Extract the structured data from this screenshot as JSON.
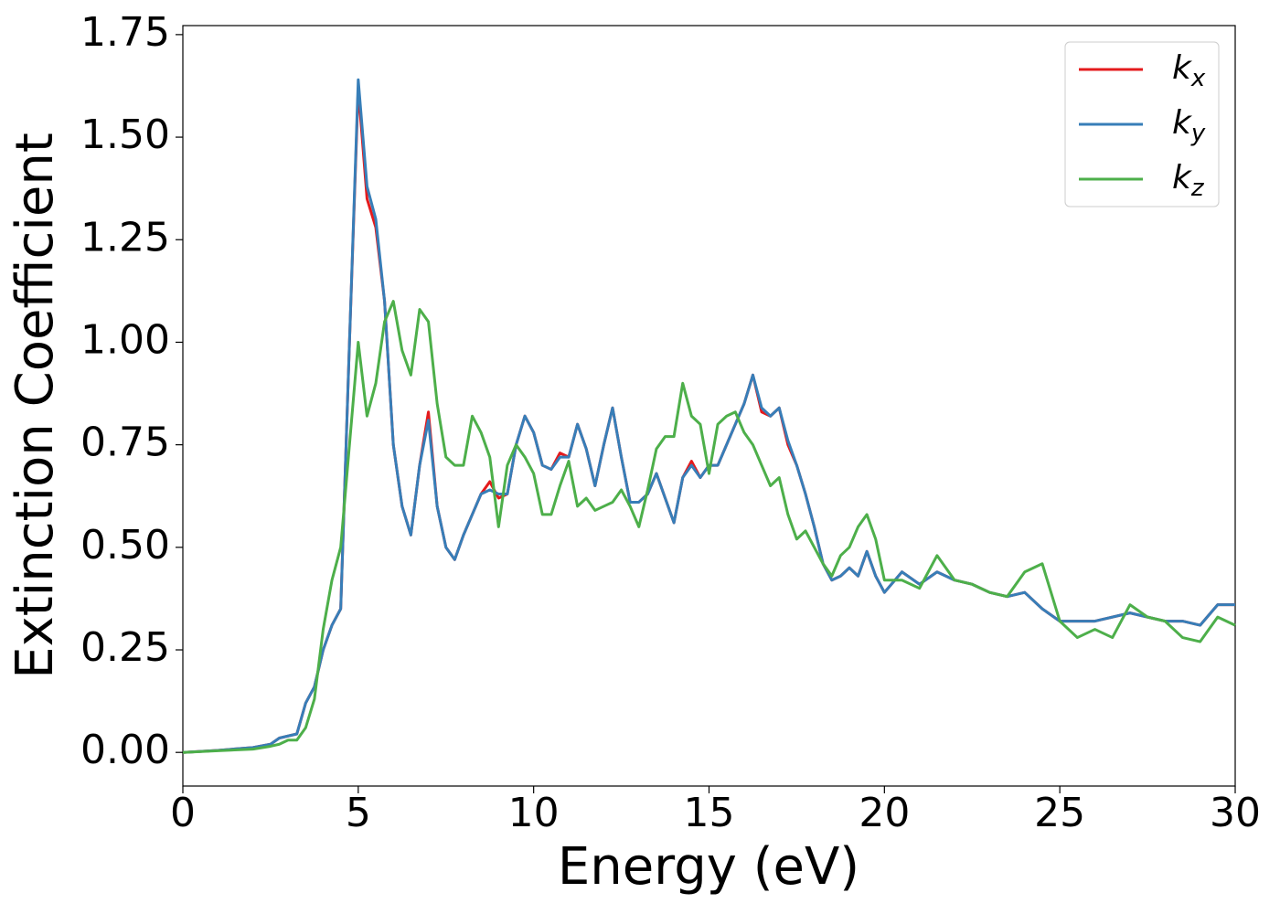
{
  "chart_data": {
    "type": "line",
    "xlabel": "Energy (eV)",
    "ylabel": "Extinction Coefficient",
    "x": [
      0,
      1,
      2,
      2.5,
      2.75,
      3,
      3.25,
      3.5,
      3.75,
      4,
      4.25,
      4.5,
      4.75,
      5,
      5.25,
      5.5,
      5.75,
      6,
      6.25,
      6.5,
      6.75,
      7,
      7.25,
      7.5,
      7.75,
      8,
      8.25,
      8.5,
      8.75,
      9,
      9.25,
      9.5,
      9.75,
      10,
      10.25,
      10.5,
      10.75,
      11,
      11.25,
      11.5,
      11.75,
      12,
      12.25,
      12.5,
      12.75,
      13,
      13.25,
      13.5,
      13.75,
      14,
      14.25,
      14.5,
      14.75,
      15,
      15.25,
      15.5,
      15.75,
      16,
      16.25,
      16.5,
      16.75,
      17,
      17.25,
      17.5,
      17.75,
      18,
      18.25,
      18.5,
      18.75,
      19,
      19.25,
      19.5,
      19.75,
      20,
      20.5,
      21,
      21.5,
      22,
      22.5,
      23,
      23.5,
      24,
      24.5,
      25,
      25.5,
      26,
      26.5,
      27,
      27.5,
      28,
      28.5,
      29,
      29.5,
      30
    ],
    "series": [
      {
        "name": "kx",
        "color": "#e41a1c",
        "values": [
          0,
          0.005,
          0.012,
          0.02,
          0.035,
          0.04,
          0.045,
          0.12,
          0.16,
          0.25,
          0.31,
          0.35,
          1.0,
          1.62,
          1.35,
          1.28,
          1.1,
          0.75,
          0.6,
          0.53,
          0.7,
          0.83,
          0.6,
          0.5,
          0.47,
          0.53,
          0.58,
          0.63,
          0.66,
          0.62,
          0.63,
          0.75,
          0.82,
          0.78,
          0.7,
          0.69,
          0.73,
          0.72,
          0.8,
          0.74,
          0.65,
          0.75,
          0.84,
          0.72,
          0.61,
          0.61,
          0.63,
          0.68,
          0.62,
          0.56,
          0.67,
          0.71,
          0.67,
          0.7,
          0.7,
          0.75,
          0.8,
          0.85,
          0.92,
          0.83,
          0.82,
          0.84,
          0.75,
          0.7,
          0.63,
          0.55,
          0.46,
          0.42,
          0.43,
          0.45,
          0.43,
          0.49,
          0.43,
          0.39,
          0.44,
          0.41,
          0.44,
          0.42,
          0.41,
          0.39,
          0.38,
          0.39,
          0.35,
          0.32,
          0.32,
          0.32,
          0.33,
          0.34,
          0.33,
          0.32,
          0.32,
          0.31,
          0.36,
          0.36
        ]
      },
      {
        "name": "ky",
        "color": "#377eb8",
        "values": [
          0,
          0.005,
          0.012,
          0.02,
          0.035,
          0.04,
          0.045,
          0.12,
          0.16,
          0.25,
          0.31,
          0.35,
          1.0,
          1.64,
          1.38,
          1.3,
          1.1,
          0.75,
          0.6,
          0.53,
          0.7,
          0.81,
          0.6,
          0.5,
          0.47,
          0.53,
          0.58,
          0.63,
          0.64,
          0.63,
          0.63,
          0.75,
          0.82,
          0.78,
          0.7,
          0.69,
          0.72,
          0.72,
          0.8,
          0.74,
          0.65,
          0.75,
          0.84,
          0.72,
          0.61,
          0.61,
          0.63,
          0.68,
          0.62,
          0.56,
          0.67,
          0.7,
          0.67,
          0.7,
          0.7,
          0.75,
          0.8,
          0.85,
          0.92,
          0.84,
          0.82,
          0.84,
          0.76,
          0.7,
          0.63,
          0.55,
          0.46,
          0.42,
          0.43,
          0.45,
          0.43,
          0.49,
          0.43,
          0.39,
          0.44,
          0.41,
          0.44,
          0.42,
          0.41,
          0.39,
          0.38,
          0.39,
          0.35,
          0.32,
          0.32,
          0.32,
          0.33,
          0.34,
          0.33,
          0.32,
          0.32,
          0.31,
          0.36,
          0.36
        ]
      },
      {
        "name": "kz",
        "color": "#4daf4a",
        "values": [
          0,
          0.004,
          0.008,
          0.015,
          0.02,
          0.03,
          0.03,
          0.06,
          0.13,
          0.3,
          0.42,
          0.5,
          0.75,
          1.0,
          0.82,
          0.9,
          1.05,
          1.1,
          0.98,
          0.92,
          1.08,
          1.05,
          0.85,
          0.72,
          0.7,
          0.7,
          0.82,
          0.78,
          0.72,
          0.55,
          0.7,
          0.75,
          0.72,
          0.68,
          0.58,
          0.58,
          0.65,
          0.71,
          0.6,
          0.62,
          0.59,
          0.6,
          0.61,
          0.64,
          0.6,
          0.55,
          0.64,
          0.74,
          0.77,
          0.77,
          0.9,
          0.82,
          0.8,
          0.68,
          0.8,
          0.82,
          0.83,
          0.78,
          0.75,
          0.7,
          0.65,
          0.67,
          0.58,
          0.52,
          0.54,
          0.5,
          0.46,
          0.43,
          0.48,
          0.5,
          0.55,
          0.58,
          0.52,
          0.42,
          0.42,
          0.4,
          0.48,
          0.42,
          0.41,
          0.39,
          0.38,
          0.44,
          0.46,
          0.32,
          0.28,
          0.3,
          0.28,
          0.36,
          0.33,
          0.32,
          0.28,
          0.27,
          0.33,
          0.31
        ]
      }
    ],
    "xlim": [
      0,
      30
    ],
    "xticks": [
      0,
      5,
      10,
      15,
      20,
      25,
      30
    ],
    "ylim": [
      -0.082,
      1.772
    ],
    "yticks": [
      {
        "value": 0,
        "label": "0.00"
      },
      {
        "value": 0.25,
        "label": "0.25"
      },
      {
        "value": 0.5,
        "label": "0.50"
      },
      {
        "value": 0.75,
        "label": "0.75"
      },
      {
        "value": 1,
        "label": "1.00"
      },
      {
        "value": 1.25,
        "label": "1.25"
      },
      {
        "value": 1.5,
        "label": "1.50"
      },
      {
        "value": 1.75,
        "label": "1.75"
      }
    ],
    "grid": false,
    "legend": "upper right"
  }
}
